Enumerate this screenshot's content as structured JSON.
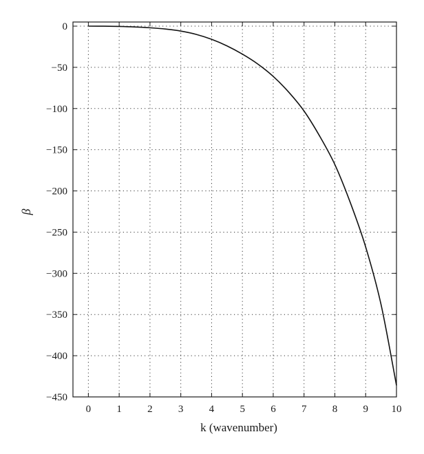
{
  "chart_data": {
    "type": "line",
    "xlabel": "k (wavenumber)",
    "ylabel": "β",
    "xlim": [
      -0.5,
      10
    ],
    "ylim": [
      -450,
      5
    ],
    "grid": true,
    "x_ticks": [
      0,
      1,
      2,
      3,
      4,
      5,
      6,
      7,
      8,
      9,
      10
    ],
    "y_ticks": [
      0,
      -50,
      -100,
      -150,
      -200,
      -250,
      -300,
      -350,
      -400,
      -450
    ],
    "x_tick_labels": [
      "0",
      "1",
      "2",
      "3",
      "4",
      "5",
      "6",
      "7",
      "8",
      "9",
      "10"
    ],
    "y_tick_labels": [
      "0",
      "−50",
      "−100",
      "−150",
      "−200",
      "−250",
      "−300",
      "−350",
      "−400",
      "−450"
    ],
    "series": [
      {
        "color": "#111111",
        "x": [
          0,
          0.5,
          1,
          1.5,
          2,
          2.5,
          3,
          3.5,
          4,
          4.5,
          5,
          5.5,
          6,
          6.5,
          7,
          7.5,
          8,
          8.5,
          9,
          9.5,
          10
        ],
        "y": [
          0,
          -0.1,
          -0.4,
          -1,
          -2,
          -3.5,
          -6,
          -10,
          -16,
          -24,
          -34,
          -46,
          -61,
          -80,
          -103,
          -133,
          -168,
          -214,
          -268,
          -338,
          -436
        ]
      }
    ]
  }
}
